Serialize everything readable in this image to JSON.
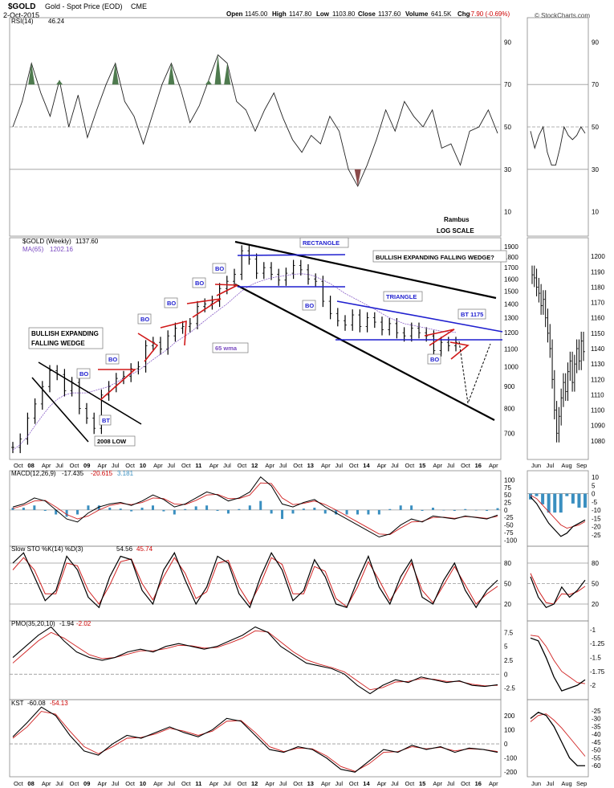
{
  "header": {
    "symbol": "$GOLD",
    "name": "Gold - Spot Price (EOD)",
    "exchange": "CME",
    "date": "2-Oct-2015",
    "open_label": "Open",
    "open": "1145.00",
    "high_label": "High",
    "high": "1147.80",
    "low_label": "Low",
    "low": "1103.80",
    "close_label": "Close",
    "close": "1137.60",
    "volume_label": "Volume",
    "volume": "641.5K",
    "change_label": "Chg",
    "change": "-7.90 (-0.69%)",
    "watermark": "© StockCharts.com"
  },
  "colors": {
    "price_bars": "#000000",
    "channel_lines": "#000000",
    "pattern_blue": "#1f1fcf",
    "pattern_red": "#d01818",
    "rsi_fill": "#4e7a4e",
    "rsi_low_fill": "#8a4a4a",
    "signal_line": "#d02020",
    "histogram": "#3a8fc0",
    "ma_line": "#7a4ac0"
  },
  "annotations": {
    "author": "Rambus",
    "scale": "LOG SCALE",
    "wedge_left": [
      "BULLISH EXPANDING",
      "FALLING WEDGE"
    ],
    "wedge_right": "BULLISH EXPANDING FALLING WEDGE?",
    "rectangle": "RECTANGLE",
    "triangle": "TRIANGLE",
    "bt_1175": "BT 1175",
    "wma": "65 wma",
    "low_2008": "2008 LOW",
    "bo": "BO",
    "bt": "BT"
  },
  "chart_data": [
    {
      "type": "line",
      "panel": "RSI",
      "label": "RSI(14)",
      "last_value": "46.24",
      "ylim": [
        0,
        100
      ],
      "yticks": [
        10,
        30,
        50,
        70,
        90
      ],
      "reference_lines": [
        30,
        50,
        70
      ],
      "series": [
        {
          "values": [
            50,
            62,
            80,
            66,
            55,
            72,
            50,
            65,
            45,
            58,
            70,
            80,
            62,
            55,
            42,
            56,
            70,
            80,
            68,
            52,
            60,
            72,
            84,
            80,
            62,
            58,
            48,
            58,
            66,
            54,
            44,
            38,
            46,
            42,
            55,
            48,
            30,
            22,
            32,
            44,
            58,
            48,
            62,
            55,
            50,
            58,
            40,
            42,
            32,
            48,
            50,
            58,
            47
          ]
        }
      ]
    },
    {
      "type": "line",
      "panel": "RSI-daily",
      "ylim": [
        0,
        100
      ],
      "yticks": [
        10,
        30,
        50,
        70,
        90
      ],
      "series": [
        {
          "values": [
            48,
            40,
            46,
            50,
            38,
            32,
            32,
            40,
            50,
            46,
            44,
            46,
            50,
            47
          ]
        }
      ]
    },
    {
      "type": "bar",
      "panel": "Price",
      "label": "$GOLD (Weekly)",
      "last_value": "1137.60",
      "ma_label": "MA(65)",
      "ma_value": "1202.16",
      "ylim": [
        620,
        1960
      ],
      "log_scale": true,
      "yticks": [
        700,
        800,
        900,
        1000,
        1100,
        1200,
        1300,
        1400,
        1500,
        1600,
        1700,
        1800,
        1900
      ],
      "xticks": [
        "Oct",
        "08",
        "Apr",
        "Jul",
        "Oct",
        "09",
        "Apr",
        "Jul",
        "Oct",
        "10",
        "Apr",
        "Jul",
        "Oct",
        "11",
        "Apr",
        "Jul",
        "Oct",
        "12",
        "Apr",
        "Jul",
        "Oct",
        "13",
        "Apr",
        "Jul",
        "Oct",
        "14",
        "Apr",
        "Jul",
        "Oct",
        "15",
        "Apr",
        "Jul",
        "Oct",
        "16",
        "Apr"
      ],
      "closes": [
        650,
        680,
        760,
        820,
        900,
        980,
        960,
        880,
        920,
        800,
        760,
        720,
        860,
        900,
        940,
        950,
        990,
        1000,
        1120,
        1140,
        1100,
        1180,
        1230,
        1240,
        1260,
        1380,
        1400,
        1420,
        1520,
        1580,
        1640,
        1860,
        1780,
        1650,
        1700,
        1640,
        1590,
        1650,
        1720,
        1680,
        1600,
        1580,
        1420,
        1330,
        1280,
        1250,
        1320,
        1240,
        1300,
        1270,
        1220,
        1260,
        1200,
        1180,
        1230,
        1200,
        1180,
        1090,
        1140,
        1120,
        1140
      ],
      "ma": [
        640,
        660,
        690,
        730,
        770,
        810,
        840,
        860,
        870,
        870,
        870,
        880,
        890,
        900,
        920,
        940,
        960,
        980,
        1010,
        1040,
        1070,
        1100,
        1140,
        1170,
        1200,
        1240,
        1280,
        1320,
        1360,
        1400,
        1450,
        1500,
        1540,
        1570,
        1590,
        1610,
        1620,
        1630,
        1640,
        1645,
        1640,
        1620,
        1590,
        1560,
        1520,
        1480,
        1450,
        1420,
        1390,
        1360,
        1330,
        1300,
        1280,
        1260,
        1250,
        1240,
        1230,
        1220,
        1210,
        1205,
        1202
      ]
    },
    {
      "type": "bar",
      "panel": "Price-daily",
      "ylim": [
        1070,
        1210
      ],
      "yticks": [
        1080,
        1090,
        1100,
        1110,
        1120,
        1130,
        1140,
        1150,
        1160,
        1170,
        1180,
        1190,
        1200
      ],
      "xticks": [
        "Jun",
        "Jul",
        "Aug",
        "Sep"
      ],
      "closes": [
        1188,
        1186,
        1180,
        1176,
        1168,
        1172,
        1160,
        1150,
        1140,
        1120,
        1100,
        1085,
        1096,
        1108,
        1118,
        1112,
        1125,
        1132,
        1118,
        1130,
        1140,
        1132,
        1145,
        1138
      ]
    },
    {
      "type": "line",
      "panel": "MACD",
      "label": "MACD(12,26,9)",
      "values_shown": [
        "-17.435",
        "-20.615",
        "3.181"
      ],
      "ylim": [
        -110,
        120
      ],
      "yticks": [
        -100,
        -75,
        -50,
        -25,
        0,
        25,
        50,
        75,
        100
      ],
      "series": [
        {
          "values": [
            10,
            20,
            40,
            30,
            0,
            -30,
            -40,
            -10,
            10,
            20,
            25,
            15,
            30,
            50,
            35,
            10,
            20,
            40,
            60,
            50,
            30,
            40,
            60,
            110,
            80,
            20,
            10,
            25,
            35,
            10,
            -10,
            -30,
            -50,
            -70,
            -90,
            -80,
            -50,
            -30,
            -40,
            -20,
            -25,
            -30,
            -20,
            -25,
            -30,
            -17
          ]
        },
        {
          "values": [
            5,
            15,
            30,
            32,
            10,
            -15,
            -30,
            -20,
            0,
            15,
            22,
            18,
            25,
            40,
            38,
            20,
            18,
            32,
            50,
            52,
            38,
            38,
            50,
            90,
            88,
            40,
            18,
            22,
            30,
            18,
            0,
            -20,
            -40,
            -60,
            -80,
            -82,
            -60,
            -40,
            -38,
            -25,
            -24,
            -28,
            -22,
            -24,
            -28,
            -21
          ]
        }
      ]
    },
    {
      "type": "line",
      "panel": "MACD-daily",
      "ylim": [
        -30,
        12
      ],
      "yticks": [
        -25,
        -20,
        -15,
        -10,
        -5,
        0,
        5,
        10
      ],
      "series": [
        {
          "values": [
            -2,
            -6,
            -12,
            -18,
            -22,
            -26,
            -24,
            -20,
            -18,
            -16
          ]
        },
        {
          "values": [
            -1,
            -3,
            -7,
            -11,
            -15,
            -19,
            -21,
            -20,
            -19,
            -17
          ]
        }
      ]
    },
    {
      "type": "line",
      "panel": "Slow STO",
      "label": "Slow STO %K(14) %D(3)",
      "values_shown": [
        "54.56",
        "45.74"
      ],
      "ylim": [
        0,
        100
      ],
      "yticks": [
        20,
        50,
        80
      ],
      "series": [
        {
          "values": [
            80,
            95,
            60,
            25,
            40,
            90,
            70,
            30,
            15,
            60,
            90,
            85,
            40,
            20,
            70,
            95,
            55,
            20,
            45,
            90,
            80,
            35,
            15,
            60,
            95,
            70,
            25,
            40,
            85,
            60,
            20,
            15,
            55,
            90,
            45,
            20,
            60,
            85,
            30,
            20,
            55,
            80,
            40,
            15,
            40,
            55
          ]
        },
        {
          "values": [
            70,
            88,
            70,
            35,
            35,
            80,
            76,
            40,
            20,
            48,
            82,
            86,
            50,
            26,
            60,
            88,
            65,
            28,
            38,
            80,
            84,
            45,
            20,
            50,
            88,
            78,
            35,
            35,
            75,
            68,
            28,
            16,
            45,
            82,
            55,
            25,
            50,
            80,
            40,
            22,
            48,
            75,
            48,
            20,
            35,
            46
          ]
        }
      ]
    },
    {
      "type": "line",
      "panel": "STO-daily",
      "ylim": [
        0,
        100
      ],
      "yticks": [
        20,
        50,
        80
      ],
      "series": [
        {
          "values": [
            60,
            30,
            15,
            20,
            45,
            30,
            40,
            55
          ]
        },
        {
          "values": [
            65,
            40,
            22,
            20,
            35,
            34,
            38,
            46
          ]
        }
      ]
    },
    {
      "type": "line",
      "panel": "PMO",
      "label": "PMO(35,20,10)",
      "values_shown": [
        "-1.94",
        "-2.02"
      ],
      "ylim": [
        -4,
        9
      ],
      "yticks": [
        -2.5,
        0.0,
        2.5,
        5.0,
        7.5
      ],
      "series": [
        {
          "values": [
            3,
            5,
            7,
            8.5,
            6,
            4,
            3,
            2.5,
            3,
            4,
            4.5,
            4,
            5,
            5.5,
            5,
            4.5,
            5,
            6,
            7,
            8.5,
            7.5,
            5,
            3.5,
            2,
            1.5,
            1,
            0,
            -2,
            -3.5,
            -2,
            -1,
            -1.5,
            -0.5,
            -1,
            -1.5,
            -1.2,
            -2,
            -2.2,
            -1.9
          ]
        },
        {
          "values": [
            2,
            4,
            6,
            7.5,
            6.5,
            5,
            3.5,
            2.8,
            3,
            3.6,
            4.2,
            4.2,
            4.6,
            5.2,
            5.1,
            4.7,
            4.8,
            5.6,
            6.5,
            7.8,
            7.6,
            5.8,
            4,
            2.6,
            1.8,
            1.2,
            0.4,
            -1.2,
            -2.8,
            -2.4,
            -1.4,
            -1.3,
            -0.8,
            -0.9,
            -1.3,
            -1.3,
            -1.8,
            -2.1,
            -2.0
          ]
        }
      ]
    },
    {
      "type": "line",
      "panel": "PMO-daily",
      "ylim": [
        -2.2,
        -0.9
      ],
      "yticks": [
        -2.0,
        -1.75,
        -1.5,
        -1.25,
        -1.0
      ],
      "series": [
        {
          "values": [
            -1.15,
            -1.2,
            -1.5,
            -1.85,
            -2.1,
            -2.05,
            -2.0,
            -1.9
          ]
        },
        {
          "values": [
            -1.1,
            -1.12,
            -1.3,
            -1.55,
            -1.75,
            -1.85,
            -1.95,
            -1.97
          ]
        }
      ]
    },
    {
      "type": "line",
      "panel": "KST",
      "label": "KST",
      "values_shown": [
        "-60.08",
        "-54.13"
      ],
      "ylim": [
        -210,
        290
      ],
      "yticks": [
        -200,
        -100,
        0,
        100,
        200
      ],
      "series": [
        {
          "values": [
            50,
            150,
            260,
            200,
            60,
            -50,
            -80,
            0,
            60,
            40,
            80,
            120,
            80,
            50,
            100,
            180,
            160,
            60,
            -40,
            -60,
            -20,
            -40,
            -100,
            -180,
            -200,
            -120,
            -40,
            -60,
            -10,
            -40,
            -20,
            -60,
            -30,
            -40,
            -60
          ]
        },
        {
          "values": [
            40,
            120,
            230,
            210,
            90,
            -20,
            -70,
            -20,
            40,
            45,
            70,
            110,
            90,
            60,
            90,
            160,
            165,
            80,
            -20,
            -55,
            -30,
            -35,
            -85,
            -160,
            -195,
            -140,
            -60,
            -55,
            -20,
            -35,
            -25,
            -50,
            -35,
            -40,
            -54
          ]
        }
      ]
    },
    {
      "type": "line",
      "panel": "KST-daily",
      "ylim": [
        -65,
        -20
      ],
      "yticks": [
        -60,
        -55,
        -50,
        -45,
        -40,
        -35,
        -30,
        -25
      ],
      "series": [
        {
          "values": [
            -30,
            -26,
            -28,
            -35,
            -45,
            -55,
            -60,
            -60
          ]
        },
        {
          "values": [
            -32,
            -28,
            -27,
            -31,
            -36,
            -42,
            -48,
            -54
          ]
        }
      ]
    }
  ]
}
